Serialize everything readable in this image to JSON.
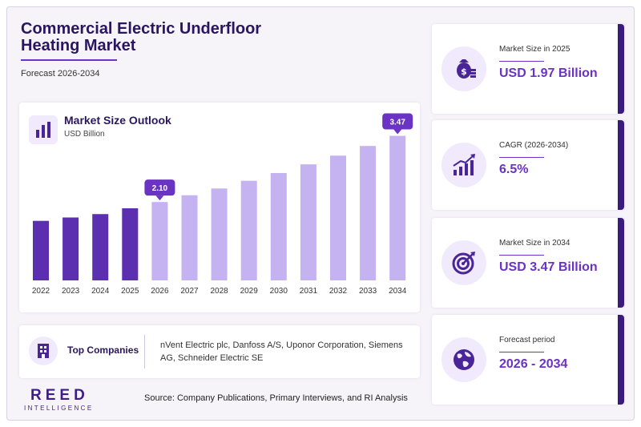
{
  "header": {
    "title": "Commercial Electric Underfloor Heating Market",
    "subtitle": "Forecast 2026-2034"
  },
  "chart_data": {
    "type": "bar",
    "title": "Market Size Outlook",
    "unit": "USD Billion",
    "categories": [
      "2022",
      "2023",
      "2024",
      "2025",
      "2026",
      "2027",
      "2028",
      "2029",
      "2030",
      "2031",
      "2032",
      "2033",
      "2034"
    ],
    "values": [
      1.71,
      1.78,
      1.85,
      1.97,
      2.1,
      2.24,
      2.38,
      2.54,
      2.7,
      2.88,
      3.06,
      3.26,
      3.47
    ],
    "highlighted": [
      {
        "category": "2026",
        "label": "2.10"
      },
      {
        "category": "2034",
        "label": "3.47"
      }
    ],
    "historical_color": "#5b2fb0",
    "forecast_color": "#c4b3f0",
    "ylim": [
      0,
      3.6
    ]
  },
  "companies": {
    "label": "Top Companies",
    "text": "nVent Electric plc, Danfoss A/S, Uponor Corporation, Siemens AG, Schneider Electric SE"
  },
  "stats": [
    {
      "label": "Market Size in 2025",
      "value": "USD 1.97 Billion",
      "icon": "money-bag-icon"
    },
    {
      "label": "CAGR (2026-2034)",
      "value": "6.5%",
      "icon": "growth-chart-icon"
    },
    {
      "label": "Market Size in 2034",
      "value": "USD 3.47 Billion",
      "icon": "target-icon"
    },
    {
      "label": "Forecast period",
      "value": "2026 - 2034",
      "icon": "globe-icon"
    }
  ],
  "footer": {
    "logo_main": "REED",
    "logo_sub": "INTELLIGENCE",
    "source": "Source: Company Publications, Primary Interviews, and RI Analysis"
  },
  "colors": {
    "accent": "#6a33c4",
    "dark": "#2a1660"
  }
}
